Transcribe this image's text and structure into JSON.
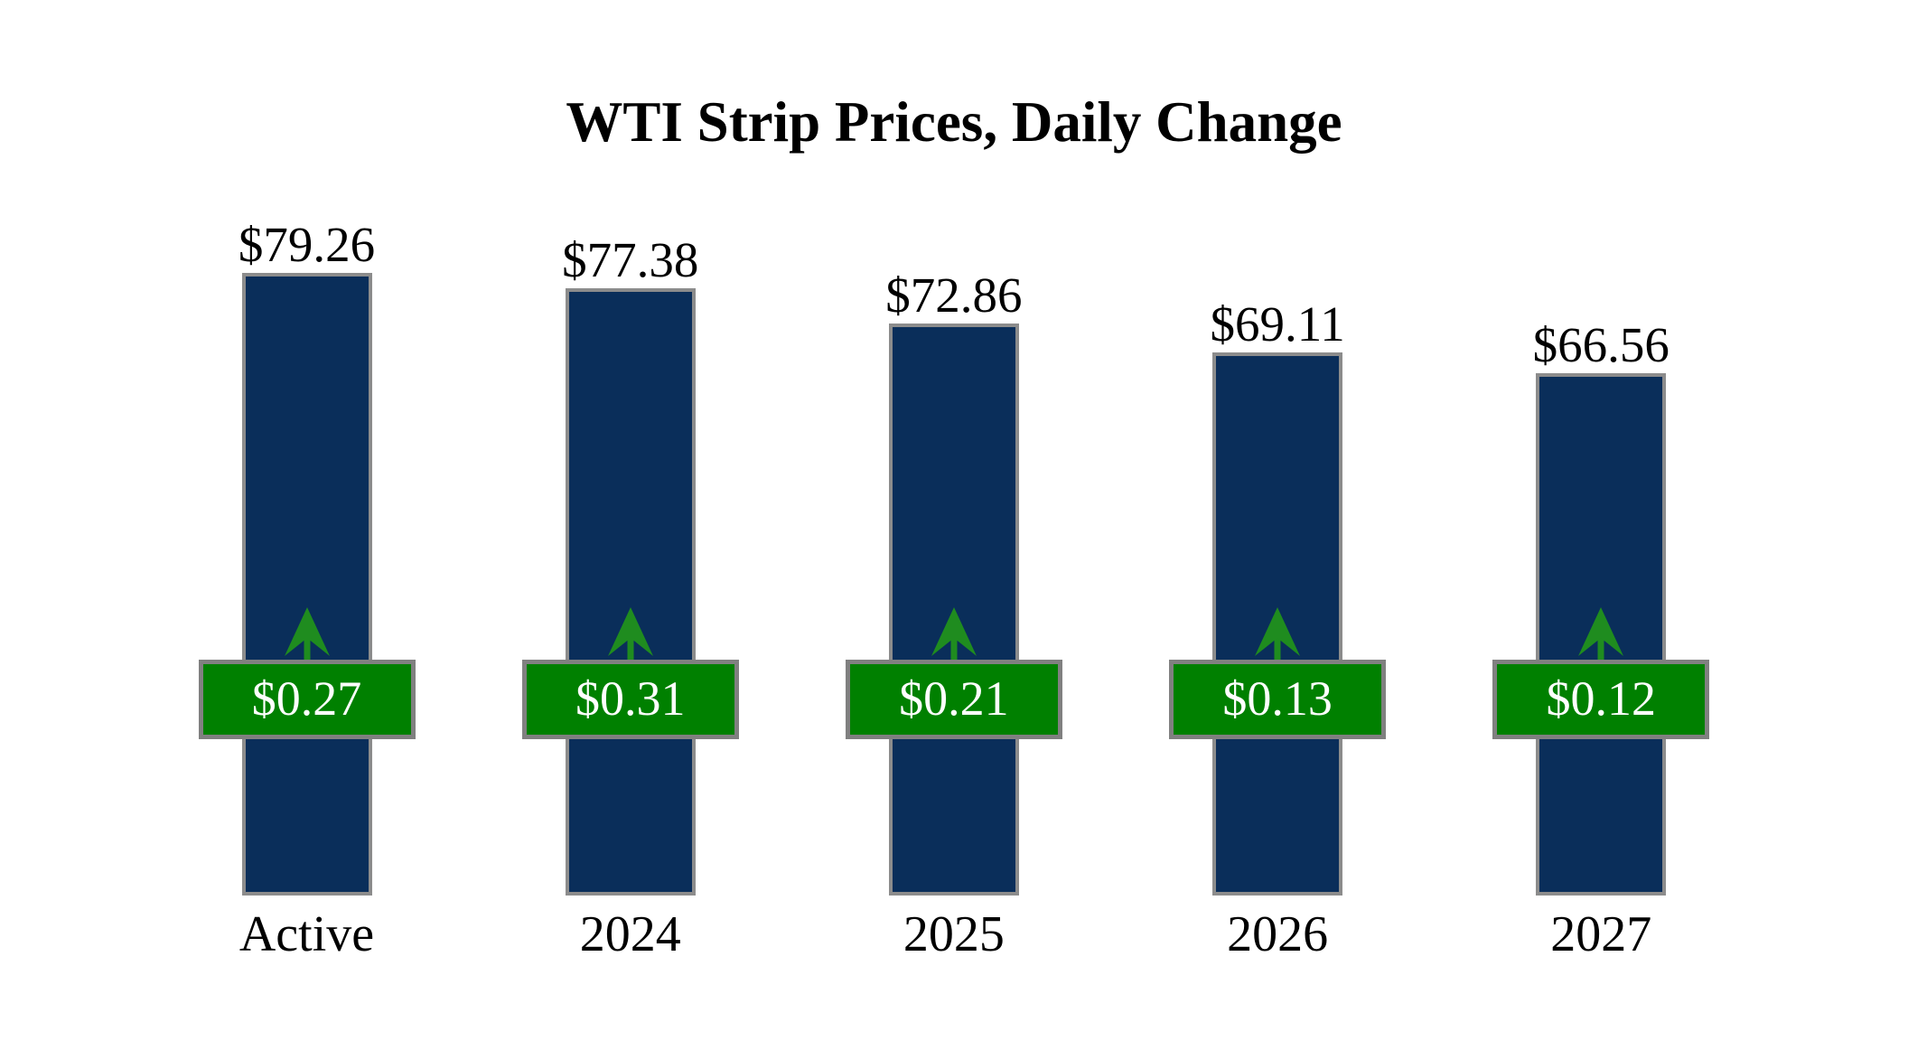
{
  "chart_data": {
    "type": "bar",
    "title": "WTI Strip Prices, Daily Change",
    "categories": [
      "Active",
      "2024",
      "2025",
      "2026",
      "2027"
    ],
    "series": [
      {
        "name": "Strip price ($/bbl)",
        "values": [
          79.26,
          77.38,
          72.86,
          69.11,
          66.56
        ]
      },
      {
        "name": "Daily change ($)",
        "values": [
          0.27,
          0.31,
          0.21,
          0.13,
          0.12
        ]
      }
    ],
    "points": [
      {
        "label": "Active",
        "price": 79.26,
        "price_label": "$79.26",
        "change": 0.27,
        "change_label": "$0.27",
        "direction": "up"
      },
      {
        "label": "2024",
        "price": 77.38,
        "price_label": "$77.38",
        "change": 0.31,
        "change_label": "$0.31",
        "direction": "up"
      },
      {
        "label": "2025",
        "price": 72.86,
        "price_label": "$72.86",
        "change": 0.21,
        "change_label": "$0.21",
        "direction": "up"
      },
      {
        "label": "2026",
        "price": 69.11,
        "price_label": "$69.11",
        "change": 0.13,
        "change_label": "$0.13",
        "direction": "up"
      },
      {
        "label": "2027",
        "price": 66.56,
        "price_label": "$66.56",
        "change": 0.12,
        "change_label": "$0.12",
        "direction": "up"
      }
    ],
    "ylim": [
      0,
      85
    ],
    "baseline": 0,
    "grid": false,
    "axes_hidden": true,
    "legend": "none"
  },
  "icons": {
    "up_arrow": "↑"
  },
  "colors": {
    "background": "#ffffff",
    "text": "#000000",
    "bar_fill": "#0a2e5a",
    "bar_border": "#8c8c8c",
    "badge_fill": "#008000",
    "badge_border": "#808080",
    "badge_text": "#ffffff",
    "arrow": "#1f8c1f"
  }
}
